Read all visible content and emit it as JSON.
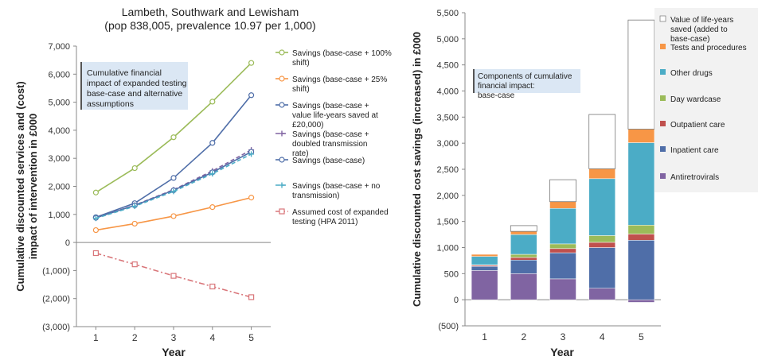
{
  "chart_data": [
    {
      "type": "line",
      "title": "Lambeth, Southwark and Lewisham",
      "subtitle": "(pop 838,005, prevalence 10.97 per 1,000)",
      "xlabel": "Year",
      "ylabel": "Cumulative discounted services and (cost) impact of intervention in £000",
      "annotation": "Cumulative financial impact of expanded testing base-case and alternative assumptions",
      "x": [
        1,
        2,
        3,
        4,
        5
      ],
      "ylim": [
        -3000,
        7000
      ],
      "yticks": [
        {
          "value": 7000,
          "label": "7,000"
        },
        {
          "value": 6000,
          "label": "6,000"
        },
        {
          "value": 5000,
          "label": "5,000"
        },
        {
          "value": 4000,
          "label": "4,000"
        },
        {
          "value": 3000,
          "label": "3,000"
        },
        {
          "value": 2000,
          "label": "2,000"
        },
        {
          "value": 1000,
          "label": "1,000"
        },
        {
          "value": 0,
          "label": "0"
        },
        {
          "value": -1000,
          "label": "(1,000)"
        },
        {
          "value": -2000,
          "label": "(2,000)"
        },
        {
          "value": -3000,
          "label": "(3,000)"
        }
      ],
      "grid": false,
      "legend_position": "right",
      "series": [
        {
          "name": "Savings (base-case + 100% shift)",
          "color": "#9bbb59",
          "marker": "circle",
          "dash": "solid",
          "values": [
            1780,
            2650,
            3750,
            5020,
            6400
          ]
        },
        {
          "name": "Savings (base-case + 25% shift)",
          "color": "#f79646",
          "marker": "circle",
          "dash": "solid",
          "values": [
            440,
            670,
            940,
            1260,
            1600
          ]
        },
        {
          "name": "Savings (base-case + value life-years saved at £20,000)",
          "color": "#4f6ea8",
          "marker": "circle",
          "dash": "solid",
          "values": [
            900,
            1400,
            2300,
            3550,
            5250
          ]
        },
        {
          "name": "Savings (base-case + doubled transmission rate)",
          "color": "#8064a2",
          "marker": "cross",
          "dash": "dash",
          "values": [
            880,
            1330,
            1880,
            2550,
            3300
          ]
        },
        {
          "name": "Savings (base-case)",
          "color": "#4f6ea8",
          "marker": "circle",
          "dash": "solid",
          "values": [
            880,
            1320,
            1860,
            2500,
            3230
          ]
        },
        {
          "name": "Savings (base-case + no transmission)",
          "color": "#4bacc6",
          "marker": "cross",
          "dash": "dash",
          "values": [
            860,
            1290,
            1820,
            2450,
            3150
          ]
        },
        {
          "name": "Assumed cost of expanded testing (HPA 2011)",
          "color": "#d9767a",
          "marker": "square",
          "dash": "dashdot",
          "values": [
            -380,
            -780,
            -1190,
            -1570,
            -1950
          ]
        }
      ]
    },
    {
      "type": "bar",
      "stacked": true,
      "xlabel": "Year",
      "ylabel": "Cumulative discounted cost savings (increased) in £000",
      "annotation": "Components of cumulative financial impact: base-case",
      "categories": [
        "1",
        "2",
        "3",
        "4",
        "5"
      ],
      "ylim": [
        -500,
        5500
      ],
      "yticks": [
        {
          "value": 5500,
          "label": "5,500"
        },
        {
          "value": 5000,
          "label": "5,000"
        },
        {
          "value": 4500,
          "label": "4,500"
        },
        {
          "value": 4000,
          "label": "4,000"
        },
        {
          "value": 3500,
          "label": "3,500"
        },
        {
          "value": 3000,
          "label": "3,000"
        },
        {
          "value": 2500,
          "label": "2,500"
        },
        {
          "value": 2000,
          "label": "2,000"
        },
        {
          "value": 1500,
          "label": "1,500"
        },
        {
          "value": 1000,
          "label": "1,000"
        },
        {
          "value": 500,
          "label": "500"
        },
        {
          "value": 0,
          "label": "0"
        },
        {
          "value": -500,
          "label": "(500)"
        }
      ],
      "grid": false,
      "legend_position": "right",
      "series": [
        {
          "name": "Antiretrovirals",
          "color": "#8064a2",
          "values": [
            560,
            500,
            400,
            220,
            -50
          ]
        },
        {
          "name": "Inpatient care",
          "color": "#4f6ea8",
          "values": [
            80,
            260,
            500,
            780,
            1140
          ]
        },
        {
          "name": "Outpatient care",
          "color": "#c0504d",
          "values": [
            20,
            50,
            80,
            100,
            120
          ]
        },
        {
          "name": "Day wardcase",
          "color": "#9bbb59",
          "values": [
            10,
            60,
            90,
            130,
            170
          ]
        },
        {
          "name": "Other drugs",
          "color": "#4bacc6",
          "values": [
            160,
            380,
            680,
            1090,
            1580
          ]
        },
        {
          "name": "Tests and procedures",
          "color": "#f79646",
          "values": [
            40,
            60,
            130,
            190,
            260
          ]
        },
        {
          "name": "Value of life-years saved (added to base-case)",
          "color": "#ffffff",
          "values": [
            0,
            110,
            420,
            1040,
            2090
          ]
        }
      ]
    }
  ]
}
